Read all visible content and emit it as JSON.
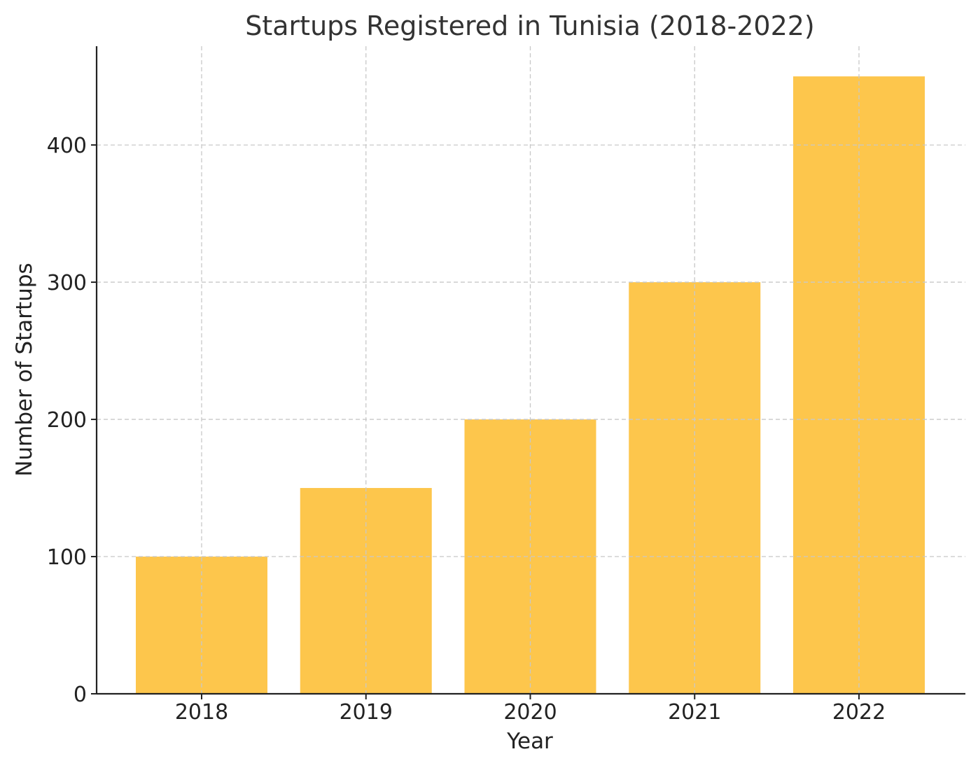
{
  "chart_data": {
    "type": "bar",
    "title": "Startups Registered in Tunisia (2018-2022)",
    "xlabel": "Year",
    "ylabel": "Number of Startups",
    "categories": [
      "2018",
      "2019",
      "2020",
      "2021",
      "2022"
    ],
    "values": [
      100,
      150,
      200,
      300,
      450
    ],
    "ylim": [
      0,
      472
    ],
    "yticks": [
      0,
      100,
      200,
      300,
      400
    ],
    "grid": true,
    "bar_color": "#fdc64c"
  }
}
